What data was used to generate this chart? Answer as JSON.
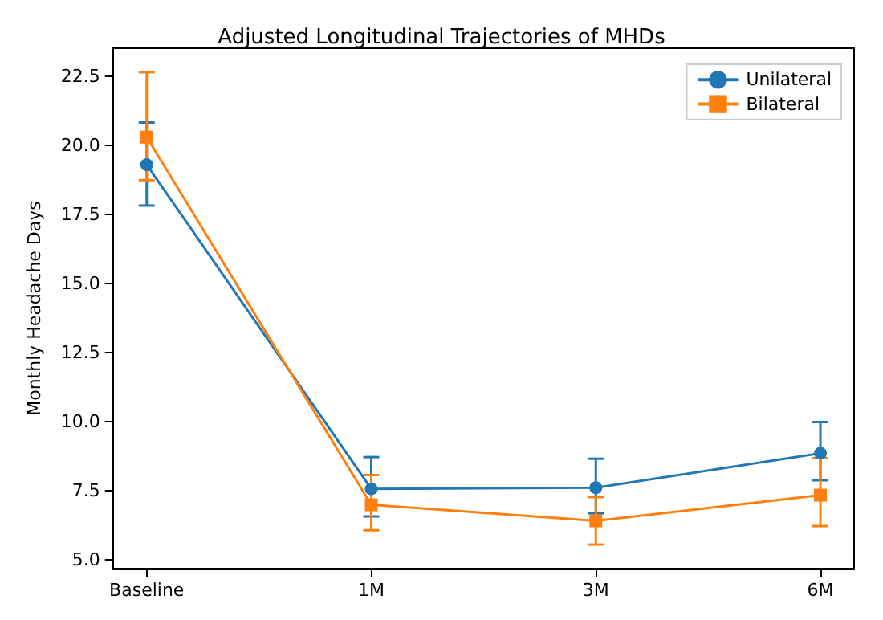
{
  "chart_data": {
    "type": "line",
    "title": "Adjusted Longitudinal Trajectories of MHDs",
    "ylabel": "Monthly Headache Days",
    "categories": [
      "Baseline",
      "1M",
      "3M",
      "6M"
    ],
    "series": [
      {
        "name": "Unilateral",
        "color": "#1f77b4",
        "marker": "circle",
        "values": [
          19.3,
          7.56,
          7.6,
          8.85
        ],
        "errors": [
          [
            17.82,
            20.83
          ],
          [
            6.56,
            8.71
          ],
          [
            6.67,
            8.65
          ],
          [
            7.87,
            9.98
          ]
        ]
      },
      {
        "name": "Bilateral",
        "color": "#ff7f0e",
        "marker": "square",
        "values": [
          20.3,
          6.98,
          6.4,
          7.33
        ],
        "errors": [
          [
            18.74,
            22.65
          ],
          [
            6.06,
            8.06
          ],
          [
            5.54,
            7.26
          ],
          [
            6.21,
            8.67
          ]
        ]
      }
    ],
    "ylim": [
      4.67,
      23.52
    ],
    "yticks": [
      {
        "value": 5,
        "label": "5.0"
      },
      7.5,
      {
        "value": 10,
        "label": "10.0"
      },
      12.5,
      {
        "value": 15,
        "label": "15.0"
      },
      17.5,
      {
        "value": 20,
        "label": "20.0"
      },
      22.5
    ],
    "grid": false,
    "legend": "top right",
    "line_style": "solid"
  }
}
